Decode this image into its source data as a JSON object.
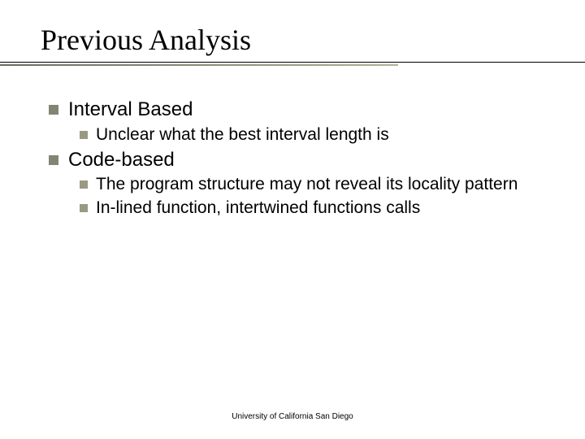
{
  "slide": {
    "title": "Previous Analysis",
    "title_fontsize": 36,
    "title_font": "Times New Roman",
    "title_color": "#000000",
    "underline": {
      "thin_color": "#000000",
      "thick_gradient_start": "#6b6b5e",
      "thick_gradient_end": "#b0b09a",
      "thick_width_pct": 68
    },
    "body_font": "Arial",
    "body_color": "#000000",
    "l1_fontsize": 24,
    "l2_fontsize": 21,
    "bullet_l1": {
      "size": 12,
      "color": "#848472",
      "shape": "square"
    },
    "bullet_l2": {
      "size": 10,
      "color": "#9a9a84",
      "shape": "square"
    },
    "items": [
      {
        "text": "Interval Based",
        "children": [
          {
            "text": "Unclear what the best interval length is"
          }
        ]
      },
      {
        "text": "Code-based",
        "children": [
          {
            "text": "The program structure may not reveal its locality pattern"
          },
          {
            "text": "In-lined function, intertwined functions calls"
          }
        ]
      }
    ],
    "footer": "University of California San Diego",
    "footer_fontsize": 10,
    "background_color": "#ffffff"
  }
}
